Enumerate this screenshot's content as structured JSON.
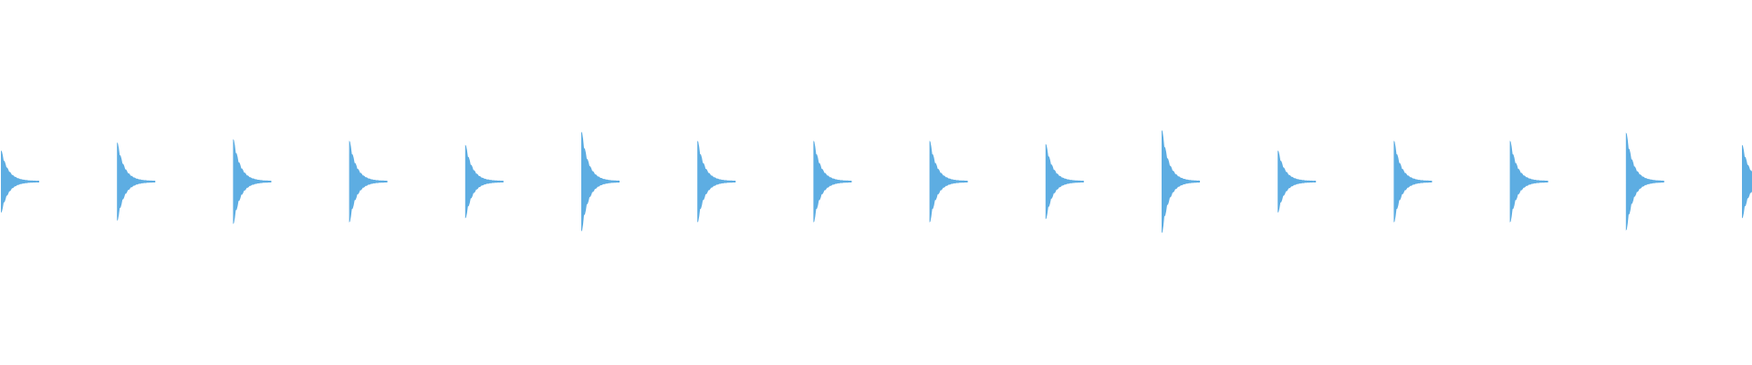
{
  "chart_data": {
    "type": "area",
    "title": "",
    "xlabel": "",
    "ylabel": "",
    "grid": false,
    "legend": "none",
    "ylim": [
      -1,
      1
    ],
    "color": "#5dade2",
    "bursts": [
      {
        "onset": 0,
        "peak": 0.37
      },
      {
        "onset": 1,
        "peak": 0.47
      },
      {
        "onset": 2,
        "peak": 0.51
      },
      {
        "onset": 3,
        "peak": 0.49
      },
      {
        "onset": 4,
        "peak": 0.44
      },
      {
        "onset": 5,
        "peak": 0.6
      },
      {
        "onset": 6,
        "peak": 0.49
      },
      {
        "onset": 7,
        "peak": 0.49
      },
      {
        "onset": 8,
        "peak": 0.49
      },
      {
        "onset": 9,
        "peak": 0.45
      },
      {
        "onset": 10,
        "peak": 0.62
      },
      {
        "onset": 11,
        "peak": 0.37
      },
      {
        "onset": 12,
        "peak": 0.49
      },
      {
        "onset": 13,
        "peak": 0.49
      },
      {
        "onset": 14,
        "peak": 0.59
      },
      {
        "onset": 15,
        "peak": 0.44
      }
    ]
  }
}
